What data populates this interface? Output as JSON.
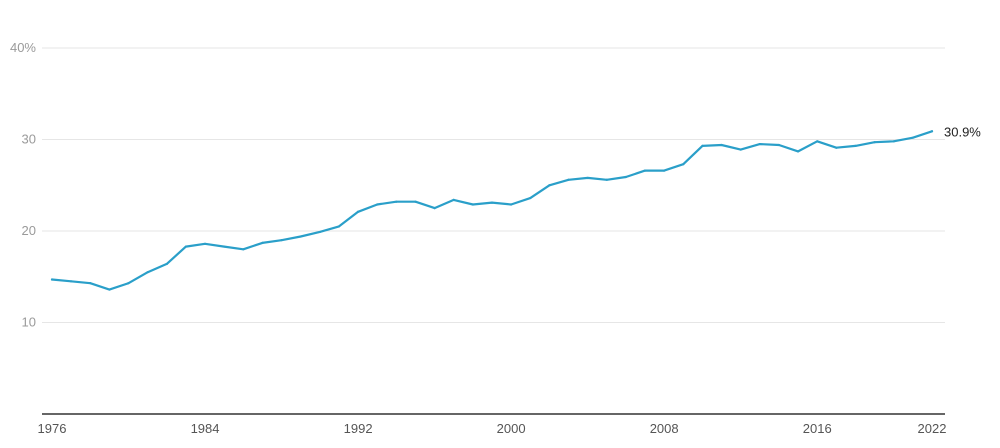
{
  "chart_data": {
    "type": "line",
    "series": [
      {
        "color": "#2a9fc9",
        "x": [
          1976,
          1977,
          1978,
          1979,
          1980,
          1981,
          1982,
          1983,
          1984,
          1985,
          1986,
          1987,
          1988,
          1989,
          1990,
          1991,
          1992,
          1993,
          1994,
          1995,
          1996,
          1997,
          1998,
          1999,
          2000,
          2001,
          2002,
          2003,
          2004,
          2005,
          2006,
          2007,
          2008,
          2009,
          2010,
          2011,
          2012,
          2013,
          2014,
          2015,
          2016,
          2017,
          2018,
          2019,
          2020,
          2021,
          2022
        ],
        "values": [
          14.7,
          14.5,
          14.3,
          13.6,
          14.3,
          15.5,
          16.4,
          18.3,
          18.6,
          18.3,
          18.0,
          18.7,
          19.0,
          19.4,
          19.9,
          20.5,
          22.1,
          22.9,
          23.2,
          23.2,
          22.5,
          23.4,
          22.9,
          23.1,
          22.9,
          23.6,
          25.0,
          25.6,
          25.8,
          25.6,
          25.9,
          26.6,
          26.6,
          27.3,
          29.3,
          29.4,
          28.9,
          29.5,
          29.4,
          28.7,
          29.8,
          29.1,
          29.3,
          29.7,
          29.8,
          30.2,
          30.9
        ]
      }
    ],
    "x_ticks": [
      1976,
      1984,
      1992,
      2000,
      2008,
      2016,
      2022
    ],
    "x_tick_labels": [
      "1976",
      "1984",
      "1992",
      "2000",
      "2008",
      "2016",
      "2022"
    ],
    "y_ticks": [
      10,
      20,
      30,
      40
    ],
    "y_tick_labels": [
      "10",
      "20",
      "30",
      "40%"
    ],
    "xlim": [
      1976,
      2022
    ],
    "ylim": [
      0,
      40
    ],
    "grid": true,
    "end_label": "30.9%"
  }
}
